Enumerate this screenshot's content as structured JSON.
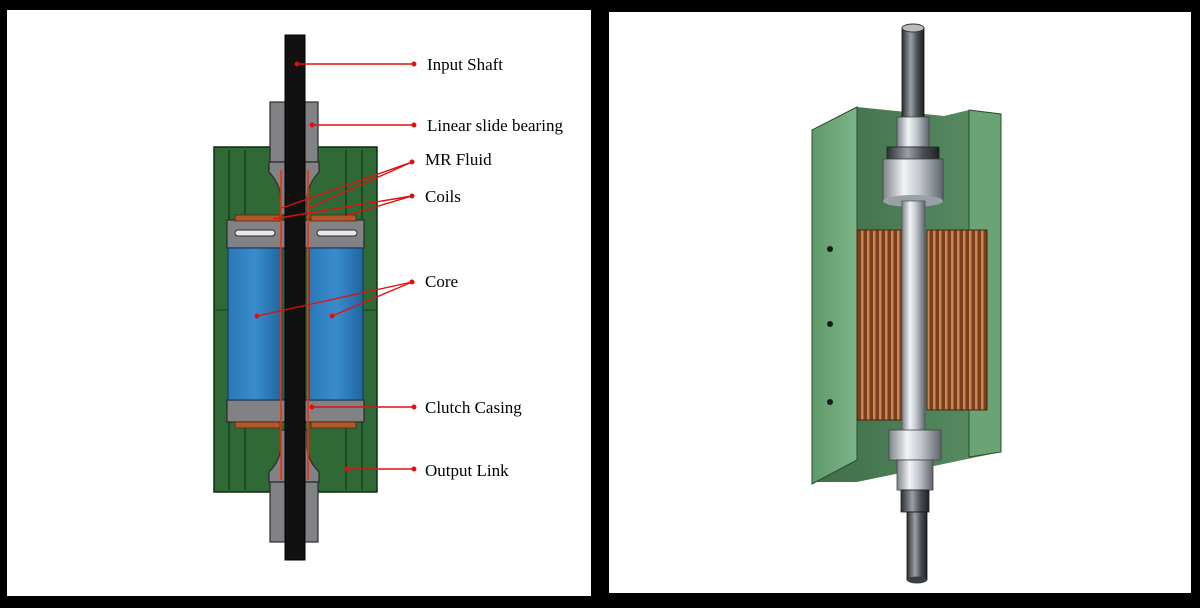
{
  "figure": {
    "labels": {
      "input_shaft": "Input Shaft",
      "linear_slide_bearing": "Linear slide bearing",
      "mr_fluid": "MR Fluid",
      "coils": "Coils",
      "core": "Core",
      "clutch_casing": "Clutch Casing",
      "output_link": "Output Link"
    },
    "colors": {
      "background": "#000000",
      "panel": "#ffffff",
      "output_link": "#2f6a36",
      "casing": "#808285",
      "core": "#2776b4",
      "shaft": "#111111",
      "coil": "#b4562c",
      "leader": "#e01010",
      "fluid": "#ff2a00",
      "render_green": "#6ea879",
      "render_steel": "#c9ced4",
      "render_copper": "#8a4b26"
    }
  }
}
